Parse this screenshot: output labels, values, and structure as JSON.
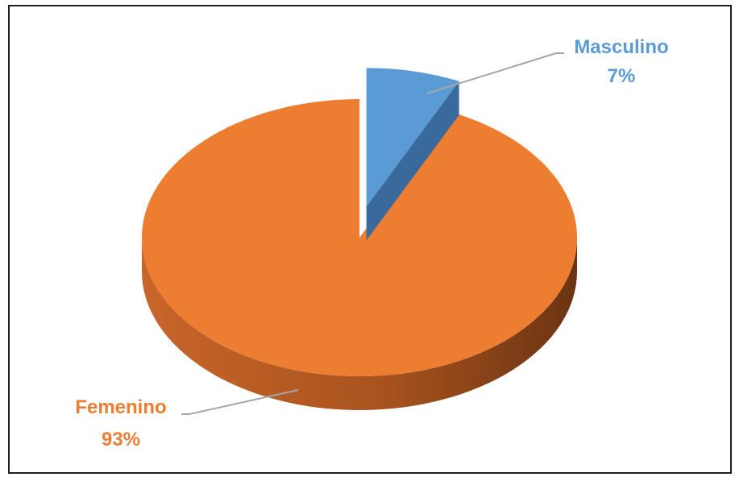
{
  "chart_data": {
    "type": "pie",
    "style": "3d-exploded",
    "categories": [
      "Masculino",
      "Femenino"
    ],
    "values": [
      7,
      93
    ],
    "value_labels": [
      "7%",
      "93%"
    ],
    "colors": [
      "#5b9bd5",
      "#ed7d31"
    ],
    "title": "",
    "legend": "none"
  }
}
